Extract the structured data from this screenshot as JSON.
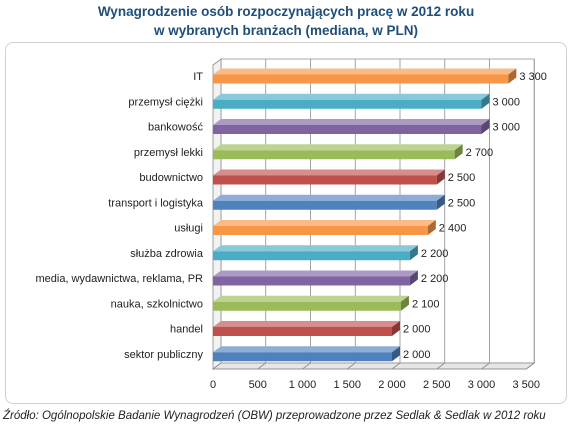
{
  "title_lines": [
    "Wynagrodzenie osób rozpoczynających pracę w 2012 roku",
    "w wybranych branżach (mediana, w PLN)"
  ],
  "source": "Źródło: Ogólnopolskie Badanie Wynagrodzeń (OBW) przeprowadzone przez Sedlak & Sedlak w 2012 roku",
  "chart_data": {
    "type": "bar",
    "orientation": "horizontal",
    "title": "Wynagrodzenie osób rozpoczynających pracę w 2012 roku w wybranych branżach (mediana, w PLN)",
    "categories": [
      "IT",
      "przemysł ciężki",
      "bankowość",
      "przemysł lekki",
      "budownictwo",
      "transport i logistyka",
      "usługi",
      "służba zdrowia",
      "media, wydawnictwa,  reklama, PR",
      "nauka, szkolnictwo",
      "handel",
      "sektor publiczny"
    ],
    "values": [
      3300,
      3000,
      3000,
      2700,
      2500,
      2500,
      2400,
      2200,
      2200,
      2100,
      2000,
      2000
    ],
    "value_labels": [
      "3 300",
      "3 000",
      "3 000",
      "2 700",
      "2 500",
      "2 500",
      "2 400",
      "2 200",
      "2 200",
      "2 100",
      "2 000",
      "2 000"
    ],
    "colors": [
      "#f79646",
      "#4bacc6",
      "#8064a2",
      "#9bbb59",
      "#c0504d",
      "#4f81bd",
      "#f79646",
      "#4bacc6",
      "#8064a2",
      "#9bbb59",
      "#c0504d",
      "#4f81bd"
    ],
    "xlim": [
      0,
      3500
    ],
    "xticks": [
      0,
      500,
      1000,
      1500,
      2000,
      2500,
      3000,
      3500
    ],
    "xtick_labels": [
      "0",
      "500",
      "1 000",
      "1 500",
      "2 000",
      "2 500",
      "3 000",
      "3 500"
    ],
    "grid": true,
    "legend": "none"
  }
}
